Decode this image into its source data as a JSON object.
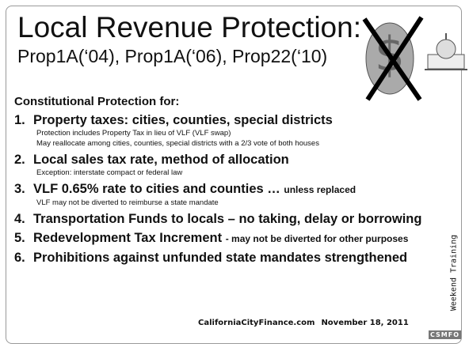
{
  "title": {
    "line1": "Local Revenue Protection:",
    "line2": "Prop1A(‘04), Prop1A(‘06), Prop22(‘10)"
  },
  "heading": "Constitutional Protection for:",
  "items": [
    {
      "number": "1.",
      "text": "Property taxes: cities, counties, special districts",
      "notes": [
        "Protection includes Property Tax in lieu of VLF (VLF swap)",
        "May reallocate among cities, counties, special districts with a 2/3 vote of both houses"
      ]
    },
    {
      "number": "2.",
      "text": "Local sales tax rate, method of allocation",
      "notes": [
        "Exception: interstate compact or federal law"
      ]
    },
    {
      "number": "3.",
      "text": "VLF 0.65% rate to cities and counties …",
      "qualifier": "unless replaced",
      "notes": [
        "VLF may not be diverted to reimburse a state mandate"
      ]
    },
    {
      "number": "4.",
      "text": "Transportation Funds to locals – no taking, delay or borrowing"
    },
    {
      "number": "5.",
      "text": "Redevelopment Tax Increment",
      "qualifier": "- may not be diverted for other purposes"
    },
    {
      "number": "6.",
      "text": "Prohibitions against unfunded  state mandates strengthened"
    }
  ],
  "side_label": "Weekend Training",
  "footer": {
    "website": "CaliforniaCityFinance.com",
    "date": "November 18, 2011"
  },
  "logo": "CSMFO"
}
